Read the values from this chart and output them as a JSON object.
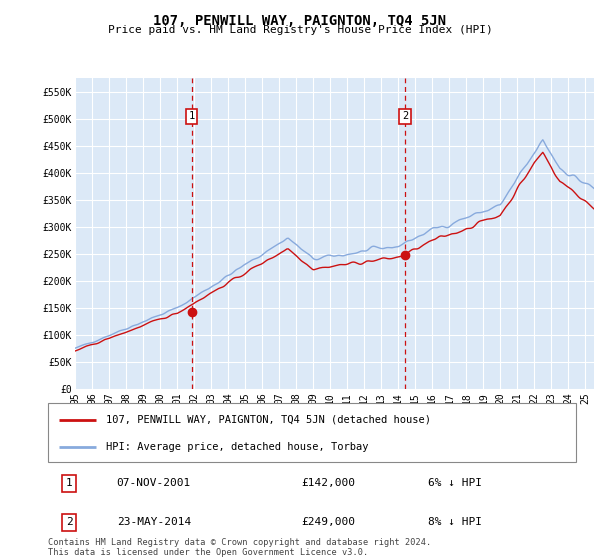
{
  "title": "107, PENWILL WAY, PAIGNTON, TQ4 5JN",
  "subtitle": "Price paid vs. HM Land Registry's House Price Index (HPI)",
  "ylabel_ticks": [
    "£0",
    "£50K",
    "£100K",
    "£150K",
    "£200K",
    "£250K",
    "£300K",
    "£350K",
    "£400K",
    "£450K",
    "£500K",
    "£550K"
  ],
  "ylim": [
    0,
    575000
  ],
  "xlim_start": 1995.0,
  "xlim_end": 2025.5,
  "plot_bg": "#dce9f7",
  "grid_color": "#ffffff",
  "line1_color": "#cc1111",
  "line2_color": "#88aadd",
  "marker1_x": 2001.85,
  "marker1_y": 142000,
  "marker2_x": 2014.39,
  "marker2_y": 249000,
  "vline1_x": 2001.85,
  "vline2_x": 2014.39,
  "vline_color": "#cc1111",
  "legend_label1": "107, PENWILL WAY, PAIGNTON, TQ4 5JN (detached house)",
  "legend_label2": "HPI: Average price, detached house, Torbay",
  "ann1_date": "07-NOV-2001",
  "ann1_price": "£142,000",
  "ann1_hpi": "6% ↓ HPI",
  "ann2_date": "23-MAY-2014",
  "ann2_price": "£249,000",
  "ann2_hpi": "8% ↓ HPI",
  "footer": "Contains HM Land Registry data © Crown copyright and database right 2024.\nThis data is licensed under the Open Government Licence v3.0.",
  "xtick_years": [
    1995,
    1996,
    1997,
    1998,
    1999,
    2000,
    2001,
    2002,
    2003,
    2004,
    2005,
    2006,
    2007,
    2008,
    2009,
    2010,
    2011,
    2012,
    2013,
    2014,
    2015,
    2016,
    2017,
    2018,
    2019,
    2020,
    2021,
    2022,
    2023,
    2024,
    2025
  ]
}
